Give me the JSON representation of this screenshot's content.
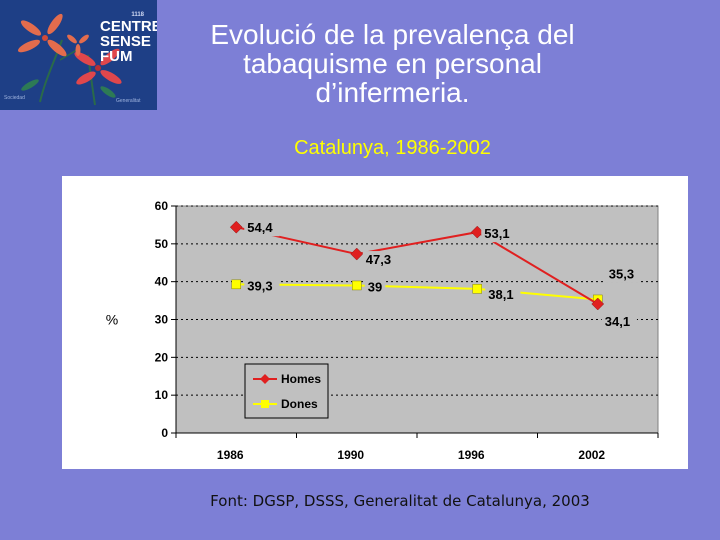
{
  "logo": {
    "line1": "CENTRE",
    "line2": "SENSE",
    "line3": "FUM",
    "top_tag": "1118",
    "bottom_left": "Sociedad",
    "bottom_right": "Generalitat"
  },
  "header": {
    "title": "Evolució de la prevalença del tabaquisme en personal d’infermeria.",
    "subtitle": "Catalunya, 1986-2002"
  },
  "chart_data": {
    "type": "line",
    "title": "",
    "xlabel": "",
    "ylabel": "%",
    "categories": [
      "1986",
      "1990",
      "1996",
      "2002"
    ],
    "ylim": [
      0,
      60
    ],
    "yticks": [
      0,
      10,
      20,
      30,
      40,
      50,
      60
    ],
    "grid": true,
    "legend_position": "bottom-left",
    "series": [
      {
        "name": "Homes",
        "values": [
          54.4,
          47.3,
          53.1,
          34.1
        ],
        "labels": [
          "54,4",
          "47,3",
          "53,1",
          "34,1"
        ],
        "color": "#e02020",
        "marker": "diamond"
      },
      {
        "name": "Dones",
        "values": [
          39.3,
          39,
          38.1,
          35.3
        ],
        "labels": [
          "39,3",
          "39",
          "38,1",
          "35,3"
        ],
        "color": "#ffff00",
        "marker": "square"
      }
    ]
  },
  "footer": {
    "source": "Font: DGSP, DSSS, Generalitat de Catalunya, 2003"
  },
  "colors": {
    "background": "#7d7fd6",
    "plot_area": "#c0c0c0",
    "chart_bg": "#ffffff",
    "logo_bg": "#1e3f86"
  }
}
